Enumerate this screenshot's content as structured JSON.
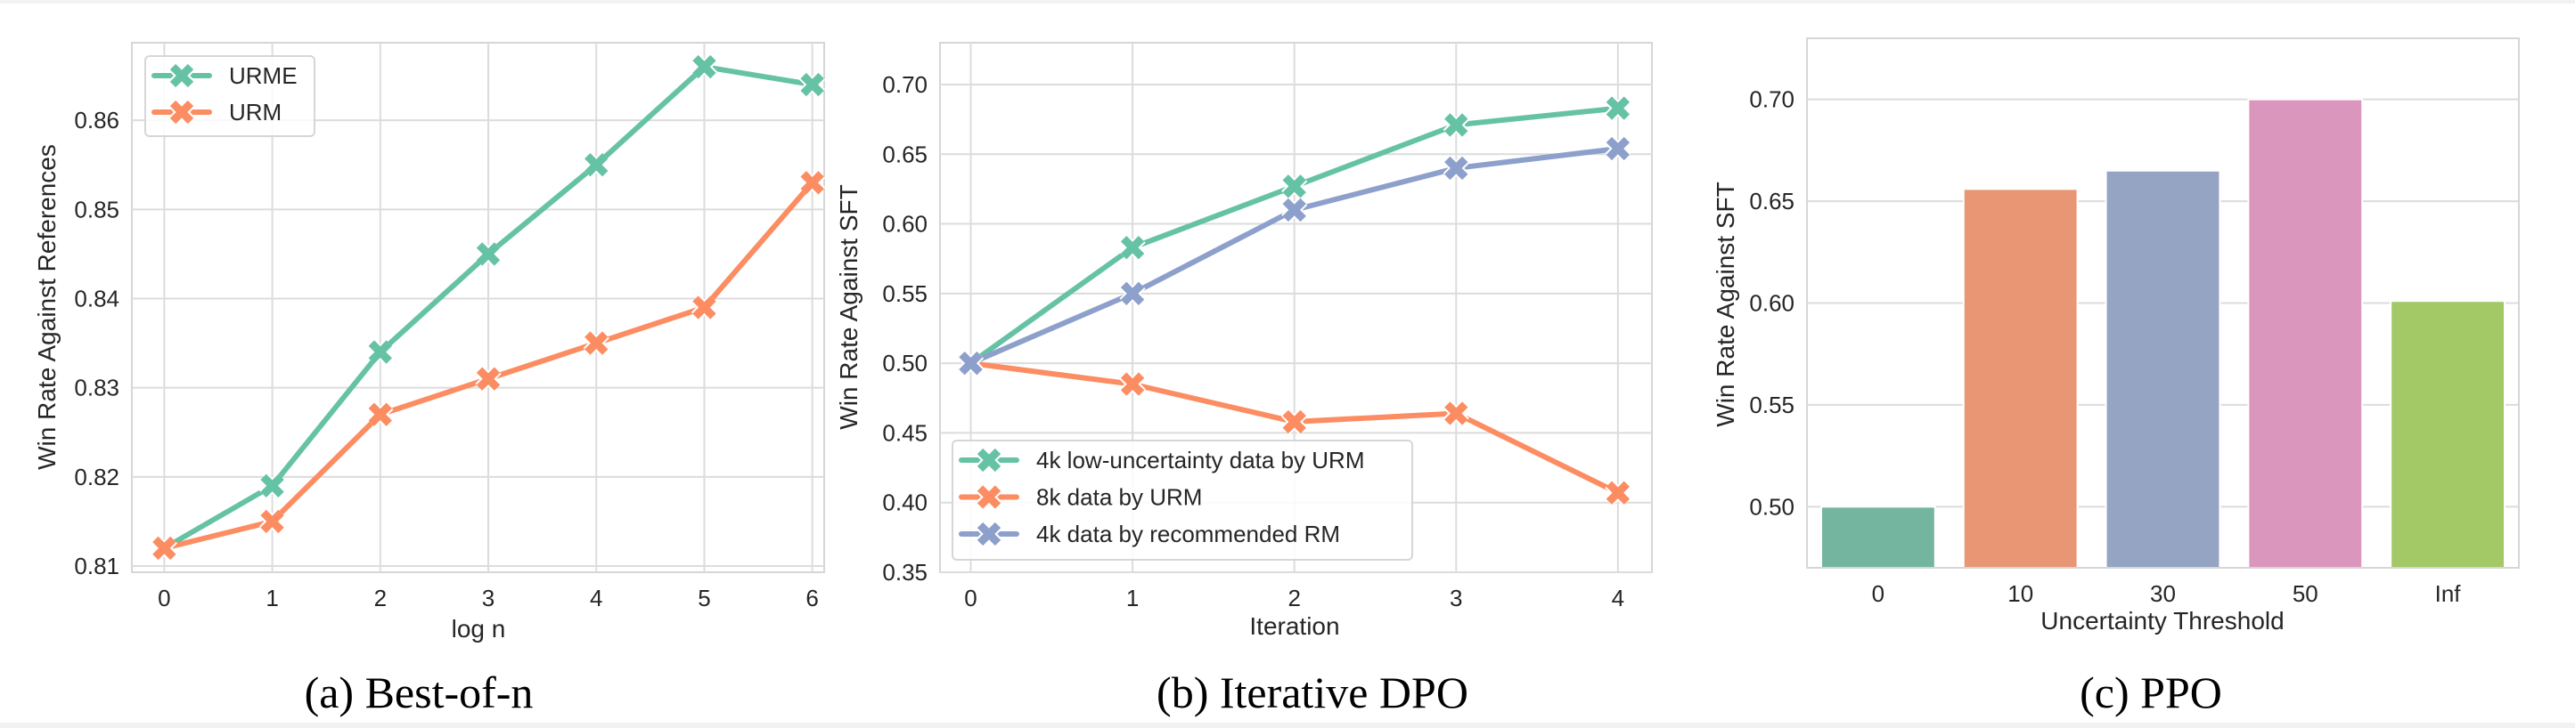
{
  "chart_data": [
    {
      "type": "line",
      "caption": "(a) Best-of-n",
      "xlabel": "log n",
      "ylabel": "Win Rate Against References",
      "x": [
        0,
        1,
        2,
        3,
        4,
        5,
        6
      ],
      "xticks": [
        "0",
        "1",
        "2",
        "3",
        "4",
        "5",
        "6"
      ],
      "yticks": [
        0.81,
        0.82,
        0.83,
        0.84,
        0.85,
        0.86
      ],
      "ytick_labels": [
        "0.81",
        "0.82",
        "0.83",
        "0.84",
        "0.85",
        "0.86"
      ],
      "xlim": [
        -0.3,
        6.11
      ],
      "ylim": [
        0.8093,
        0.8687
      ],
      "grid": true,
      "legend_position": "top-left",
      "series": [
        {
          "name": "URME",
          "color": "#66c2a5",
          "values": [
            0.812,
            0.819,
            0.834,
            0.845,
            0.855,
            0.866,
            0.864
          ]
        },
        {
          "name": "URM",
          "color": "#fc8d62",
          "values": [
            0.812,
            0.815,
            0.827,
            0.831,
            0.835,
            0.839,
            0.853
          ]
        }
      ]
    },
    {
      "type": "line",
      "caption": "(b) Iterative DPO",
      "xlabel": "Iteration",
      "ylabel": "Win Rate Against SFT",
      "x": [
        0,
        1,
        2,
        3,
        4
      ],
      "xticks": [
        "0",
        "1",
        "2",
        "3",
        "4"
      ],
      "yticks": [
        0.35,
        0.4,
        0.45,
        0.5,
        0.55,
        0.6,
        0.65,
        0.7
      ],
      "ytick_labels": [
        "0.35",
        "0.40",
        "0.45",
        "0.50",
        "0.55",
        "0.60",
        "0.65",
        "0.70"
      ],
      "xlim": [
        -0.19,
        4.21
      ],
      "ylim": [
        0.35,
        0.73
      ],
      "grid": true,
      "legend_position": "bottom-left",
      "series": [
        {
          "name": "4k low-uncertainty data by URM",
          "color": "#66c2a5",
          "values": [
            0.5,
            0.583,
            0.627,
            0.671,
            0.683
          ]
        },
        {
          "name": "8k data by URM",
          "color": "#fc8d62",
          "values": [
            0.5,
            0.485,
            0.458,
            0.464,
            0.407
          ]
        },
        {
          "name": "4k data by recommended RM",
          "color": "#8da0cb",
          "values": [
            0.5,
            0.55,
            0.61,
            0.64,
            0.654
          ]
        }
      ]
    },
    {
      "type": "bar",
      "caption": "(c) PPO",
      "xlabel": "Uncertainty Threshold",
      "ylabel": "Win Rate Against SFT",
      "categories": [
        "0",
        "10",
        "30",
        "50",
        "Inf"
      ],
      "values": [
        0.5,
        0.656,
        0.665,
        0.7,
        0.601
      ],
      "colors": [
        "#74b59f",
        "#e99675",
        "#95a4c2",
        "#db96be",
        "#a3c866"
      ],
      "yticks": [
        0.5,
        0.55,
        0.6,
        0.65,
        0.7
      ],
      "ytick_labels": [
        "0.50",
        "0.55",
        "0.60",
        "0.65",
        "0.70"
      ],
      "ylim": [
        0.47,
        0.73
      ],
      "grid": true
    }
  ]
}
